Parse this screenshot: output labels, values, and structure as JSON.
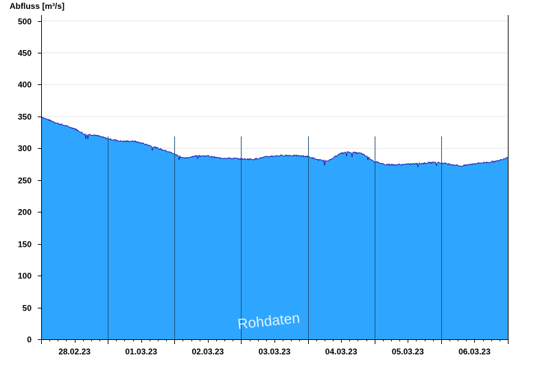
{
  "chart_data": {
    "type": "area",
    "ylabel": "Abfluss [m³/s]",
    "ylim": [
      0,
      510
    ],
    "yticks": [
      0,
      50,
      100,
      150,
      200,
      250,
      300,
      350,
      400,
      450,
      500
    ],
    "xlim": [
      0,
      7
    ],
    "x_unit": "days from 28.02.23 00:00",
    "day_labels": [
      "28.02.23",
      "01.03.23",
      "02.03.23",
      "03.03.23",
      "04.03.23",
      "05.03.23",
      "06.03.23"
    ],
    "grid": "horizontal",
    "series": [
      {
        "x": [
          0,
          0.05,
          0.25,
          0.5,
          0.65,
          0.8,
          1.0,
          1.2,
          1.4,
          1.55,
          1.75,
          1.9,
          2.0,
          2.15,
          2.3,
          2.5,
          2.65,
          2.9,
          3.0,
          3.2,
          3.4,
          3.5,
          3.7,
          3.9,
          4.0,
          4.15,
          4.25,
          4.35,
          4.45,
          4.5,
          4.6,
          4.8,
          4.9,
          5.0,
          5.15,
          5.3,
          5.5,
          5.7,
          5.9,
          6.0,
          6.2,
          6.3,
          6.5,
          6.7,
          6.85,
          7.0
        ],
        "y": [
          350,
          347,
          339,
          331,
          322,
          321,
          315,
          311,
          311,
          307,
          300,
          295,
          291,
          284,
          288,
          288,
          285,
          284,
          283,
          283,
          287,
          288,
          289,
          288,
          287,
          282,
          280,
          282,
          290,
          292,
          294,
          292,
          286,
          279,
          275,
          274,
          275,
          276,
          278,
          277,
          274,
          272,
          276,
          278,
          280,
          286
        ],
        "color": "#2ea6ff",
        "line_color": "#1a1aaa"
      }
    ],
    "annotations": [
      "Rohdaten"
    ]
  }
}
